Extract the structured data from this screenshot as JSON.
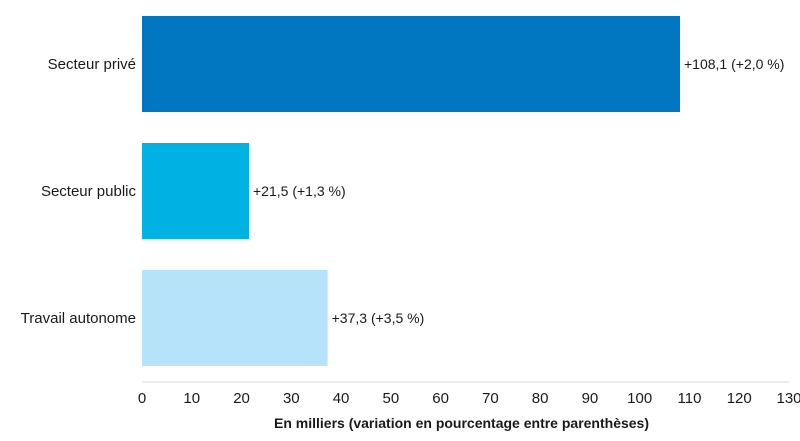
{
  "chart_data": {
    "type": "bar",
    "orientation": "horizontal",
    "categories": [
      "Secteur privé",
      "Secteur public",
      "Travail autonome"
    ],
    "values": [
      108.1,
      21.5,
      37.3
    ],
    "data_labels": [
      "+108,1 (+2,0 %)",
      "+21,5 (+1,3 %)",
      "+37,3 (+3,5 %)"
    ],
    "colors": [
      "#0077c0",
      "#00b2e3",
      "#b7e3fa"
    ],
    "xlim": [
      0,
      130
    ],
    "xticks": [
      0,
      10,
      20,
      30,
      40,
      50,
      60,
      70,
      80,
      90,
      100,
      110,
      120,
      130
    ],
    "xlabel": "En milliers (variation en pourcentage entre parenthèses)",
    "ylabel": "",
    "title": "",
    "grid": false
  }
}
